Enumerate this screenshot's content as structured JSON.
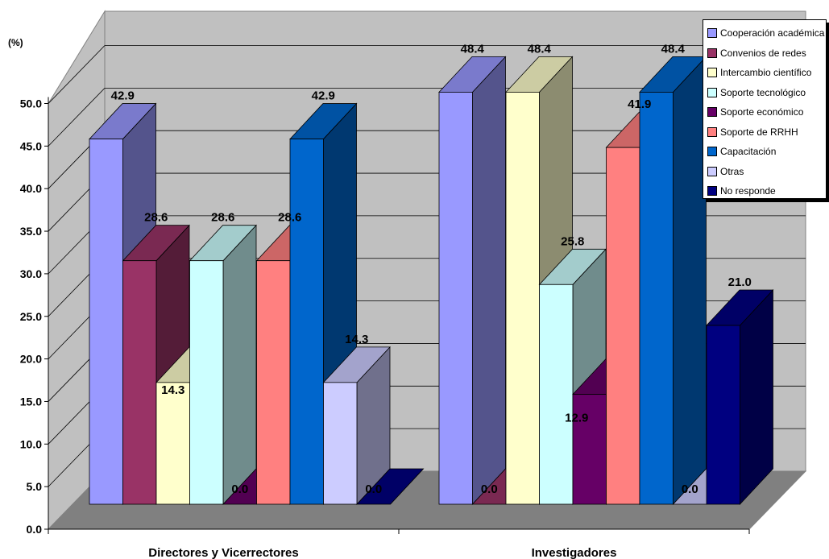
{
  "chart_data": {
    "type": "bar",
    "unit_label": "(%)",
    "categories": [
      "Directores y Vicerrectores",
      "Investigadores"
    ],
    "ylim": [
      0,
      50
    ],
    "yticks": [
      "0.0",
      "5.0",
      "10.0",
      "15.0",
      "20.0",
      "25.0",
      "30.0",
      "35.0",
      "40.0",
      "45.0",
      "50.0"
    ],
    "grid": true,
    "legend_position": "top-right",
    "series": [
      {
        "name": "Cooperación académica",
        "color": "#9999FF",
        "values": [
          42.9,
          48.4
        ],
        "labels": [
          "42.9",
          "48.4"
        ]
      },
      {
        "name": "Convenios de redes",
        "color": "#993366",
        "values": [
          28.6,
          0.0
        ],
        "labels": [
          "28.6",
          "0.0"
        ]
      },
      {
        "name": "Intercambio científico",
        "color": "#FFFFCC",
        "values": [
          14.3,
          48.4
        ],
        "labels": [
          "14.3",
          "48.4"
        ]
      },
      {
        "name": "Soporte tecnológico",
        "color": "#CCFFFF",
        "values": [
          28.6,
          25.8
        ],
        "labels": [
          "28.6",
          "25.8"
        ]
      },
      {
        "name": "Soporte económico",
        "color": "#660066",
        "values": [
          0.0,
          12.9
        ],
        "labels": [
          "0.0",
          "12.9"
        ]
      },
      {
        "name": "Soporte de RRHH",
        "color": "#FF8080",
        "values": [
          28.6,
          41.9
        ],
        "labels": [
          "28.6",
          "41.9"
        ]
      },
      {
        "name": "Capacitación",
        "color": "#0066CC",
        "values": [
          42.9,
          48.4
        ],
        "labels": [
          "42.9",
          "48.4"
        ]
      },
      {
        "name": "Otras",
        "color": "#CCCCFF",
        "values": [
          14.3,
          0.0
        ],
        "labels": [
          "14.3",
          "0.0"
        ]
      },
      {
        "name": "No responde",
        "color": "#000080",
        "values": [
          0.0,
          21.0
        ],
        "labels": [
          "0.0",
          "21.0"
        ]
      }
    ]
  }
}
